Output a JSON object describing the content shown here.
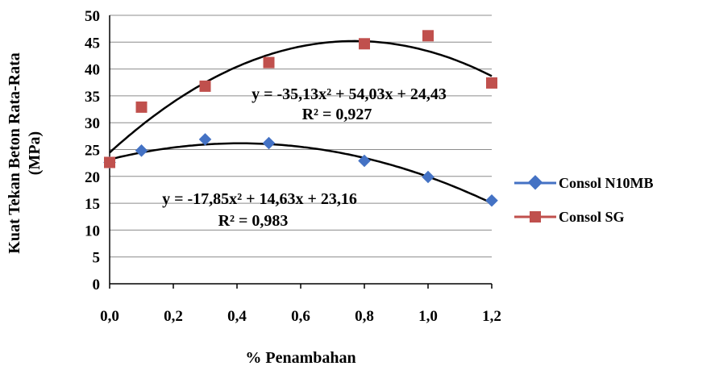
{
  "chart_data": {
    "type": "scatter",
    "xlabel": "% Penambahan",
    "ylabel_lines": [
      "Kuat Tekan Beton Rata-Rata",
      "(MPa)"
    ],
    "xlim": [
      0,
      1.2
    ],
    "ylim": [
      0,
      50
    ],
    "x_ticks": [
      0,
      0.2,
      0.4,
      0.6,
      0.8,
      1.0,
      1.2
    ],
    "x_tick_labels": [
      "0,0",
      "0,2",
      "0,4",
      "0,6",
      "0,8",
      "1,0",
      "1,2"
    ],
    "y_ticks": [
      0,
      5,
      10,
      15,
      20,
      25,
      30,
      35,
      40,
      45,
      50
    ],
    "y_tick_labels": [
      "0",
      "5",
      "10",
      "15",
      "20",
      "25",
      "30",
      "35",
      "40",
      "45",
      "50"
    ],
    "grid": "horizontal",
    "legend_position": "right",
    "series": [
      {
        "name": "Consol N10MB",
        "color": "#4472C4",
        "marker": "diamond",
        "x": [
          0,
          0.1,
          0.3,
          0.5,
          0.8,
          1.0,
          1.2
        ],
        "y": [
          22.6,
          24.8,
          26.9,
          26.2,
          22.9,
          19.9,
          15.5
        ],
        "trendline": {
          "type": "polynomial-2",
          "coefficients": [
            -17.85,
            14.63,
            23.16
          ],
          "equation": "y = -17,85x² + 14,63x + 23,16",
          "r2": "R² = 0,983"
        }
      },
      {
        "name": "Consol SG",
        "color": "#C0504D",
        "marker": "square",
        "x": [
          0,
          0.1,
          0.3,
          0.5,
          0.8,
          1.0,
          1.2
        ],
        "y": [
          22.6,
          32.9,
          36.8,
          41.2,
          44.7,
          46.2,
          37.4
        ],
        "trendline": {
          "type": "polynomial-2",
          "coefficients": [
            -35.13,
            54.03,
            24.43
          ],
          "equation": "y = -35,13x² + 54,03x + 24,43",
          "r2": "R² = 0,927"
        }
      }
    ]
  }
}
